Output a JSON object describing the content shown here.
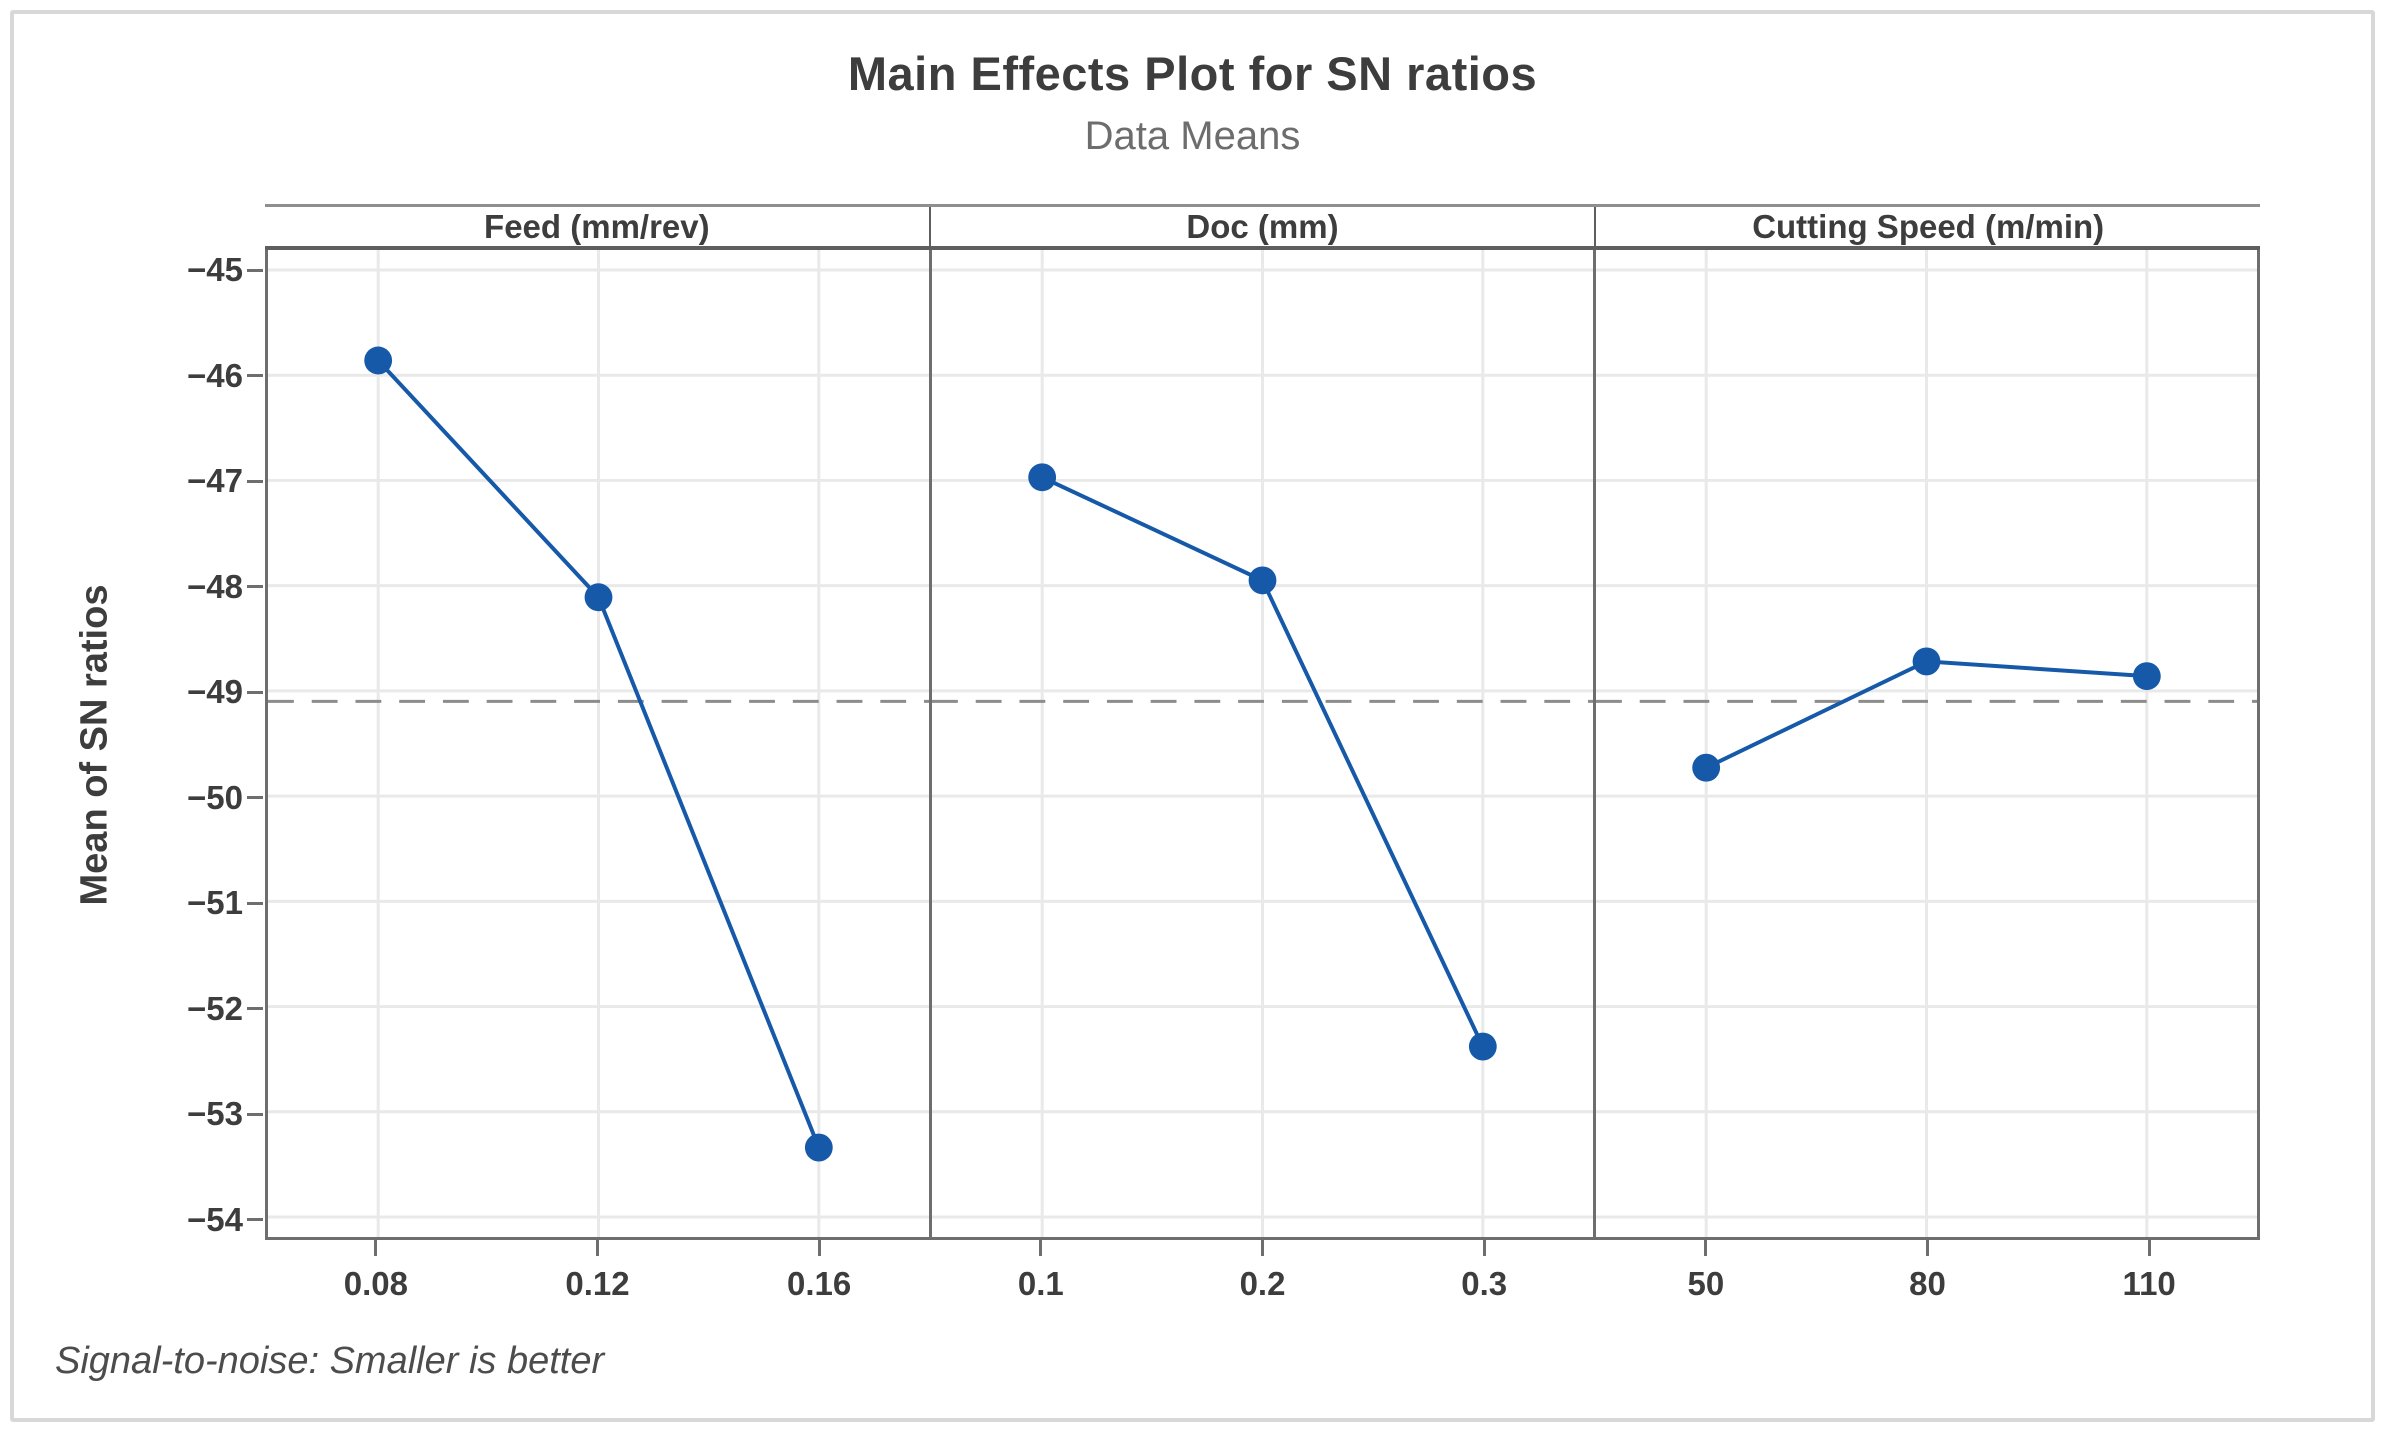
{
  "window": {
    "background": "#ffffff",
    "frame_border_color": "#d8d8d8"
  },
  "chart_data": {
    "type": "line",
    "title": "Main Effects Plot for SN ratios",
    "subtitle": "Data Means",
    "ylabel": "Mean of SN ratios",
    "footnote": "Signal-to-noise: Smaller is better",
    "ylim": [
      -54.19,
      -44.81
    ],
    "yticks": [
      -45,
      -46,
      -47,
      -48,
      -49,
      -50,
      -51,
      -52,
      -53,
      -54
    ],
    "ytick_labels": [
      "−45",
      "−46",
      "−47",
      "−48",
      "−49",
      "−50",
      "−51",
      "−52",
      "−53",
      "−54"
    ],
    "grid": true,
    "legend": "none",
    "reference_line": {
      "value": -49.1,
      "style": "dashed"
    },
    "panels": [
      {
        "header": "Feed (mm/rev)",
        "x_labels": [
          "0.08",
          "0.12",
          "0.16"
        ],
        "values": [
          -45.86,
          -48.11,
          -53.34
        ]
      },
      {
        "header": "Doc (mm)",
        "x_labels": [
          "0.1",
          "0.2",
          "0.3"
        ],
        "values": [
          -46.97,
          -47.95,
          -52.38
        ]
      },
      {
        "header": "Cutting Speed (m/min)",
        "x_labels": [
          "50",
          "80",
          "110"
        ],
        "values": [
          -49.73,
          -48.72,
          -48.86
        ]
      }
    ],
    "series_color": "#1659a9",
    "reference_color": "#8c8c8c",
    "gridline_color": "#e9e9e9",
    "axis_color": "#6e6e6e"
  }
}
